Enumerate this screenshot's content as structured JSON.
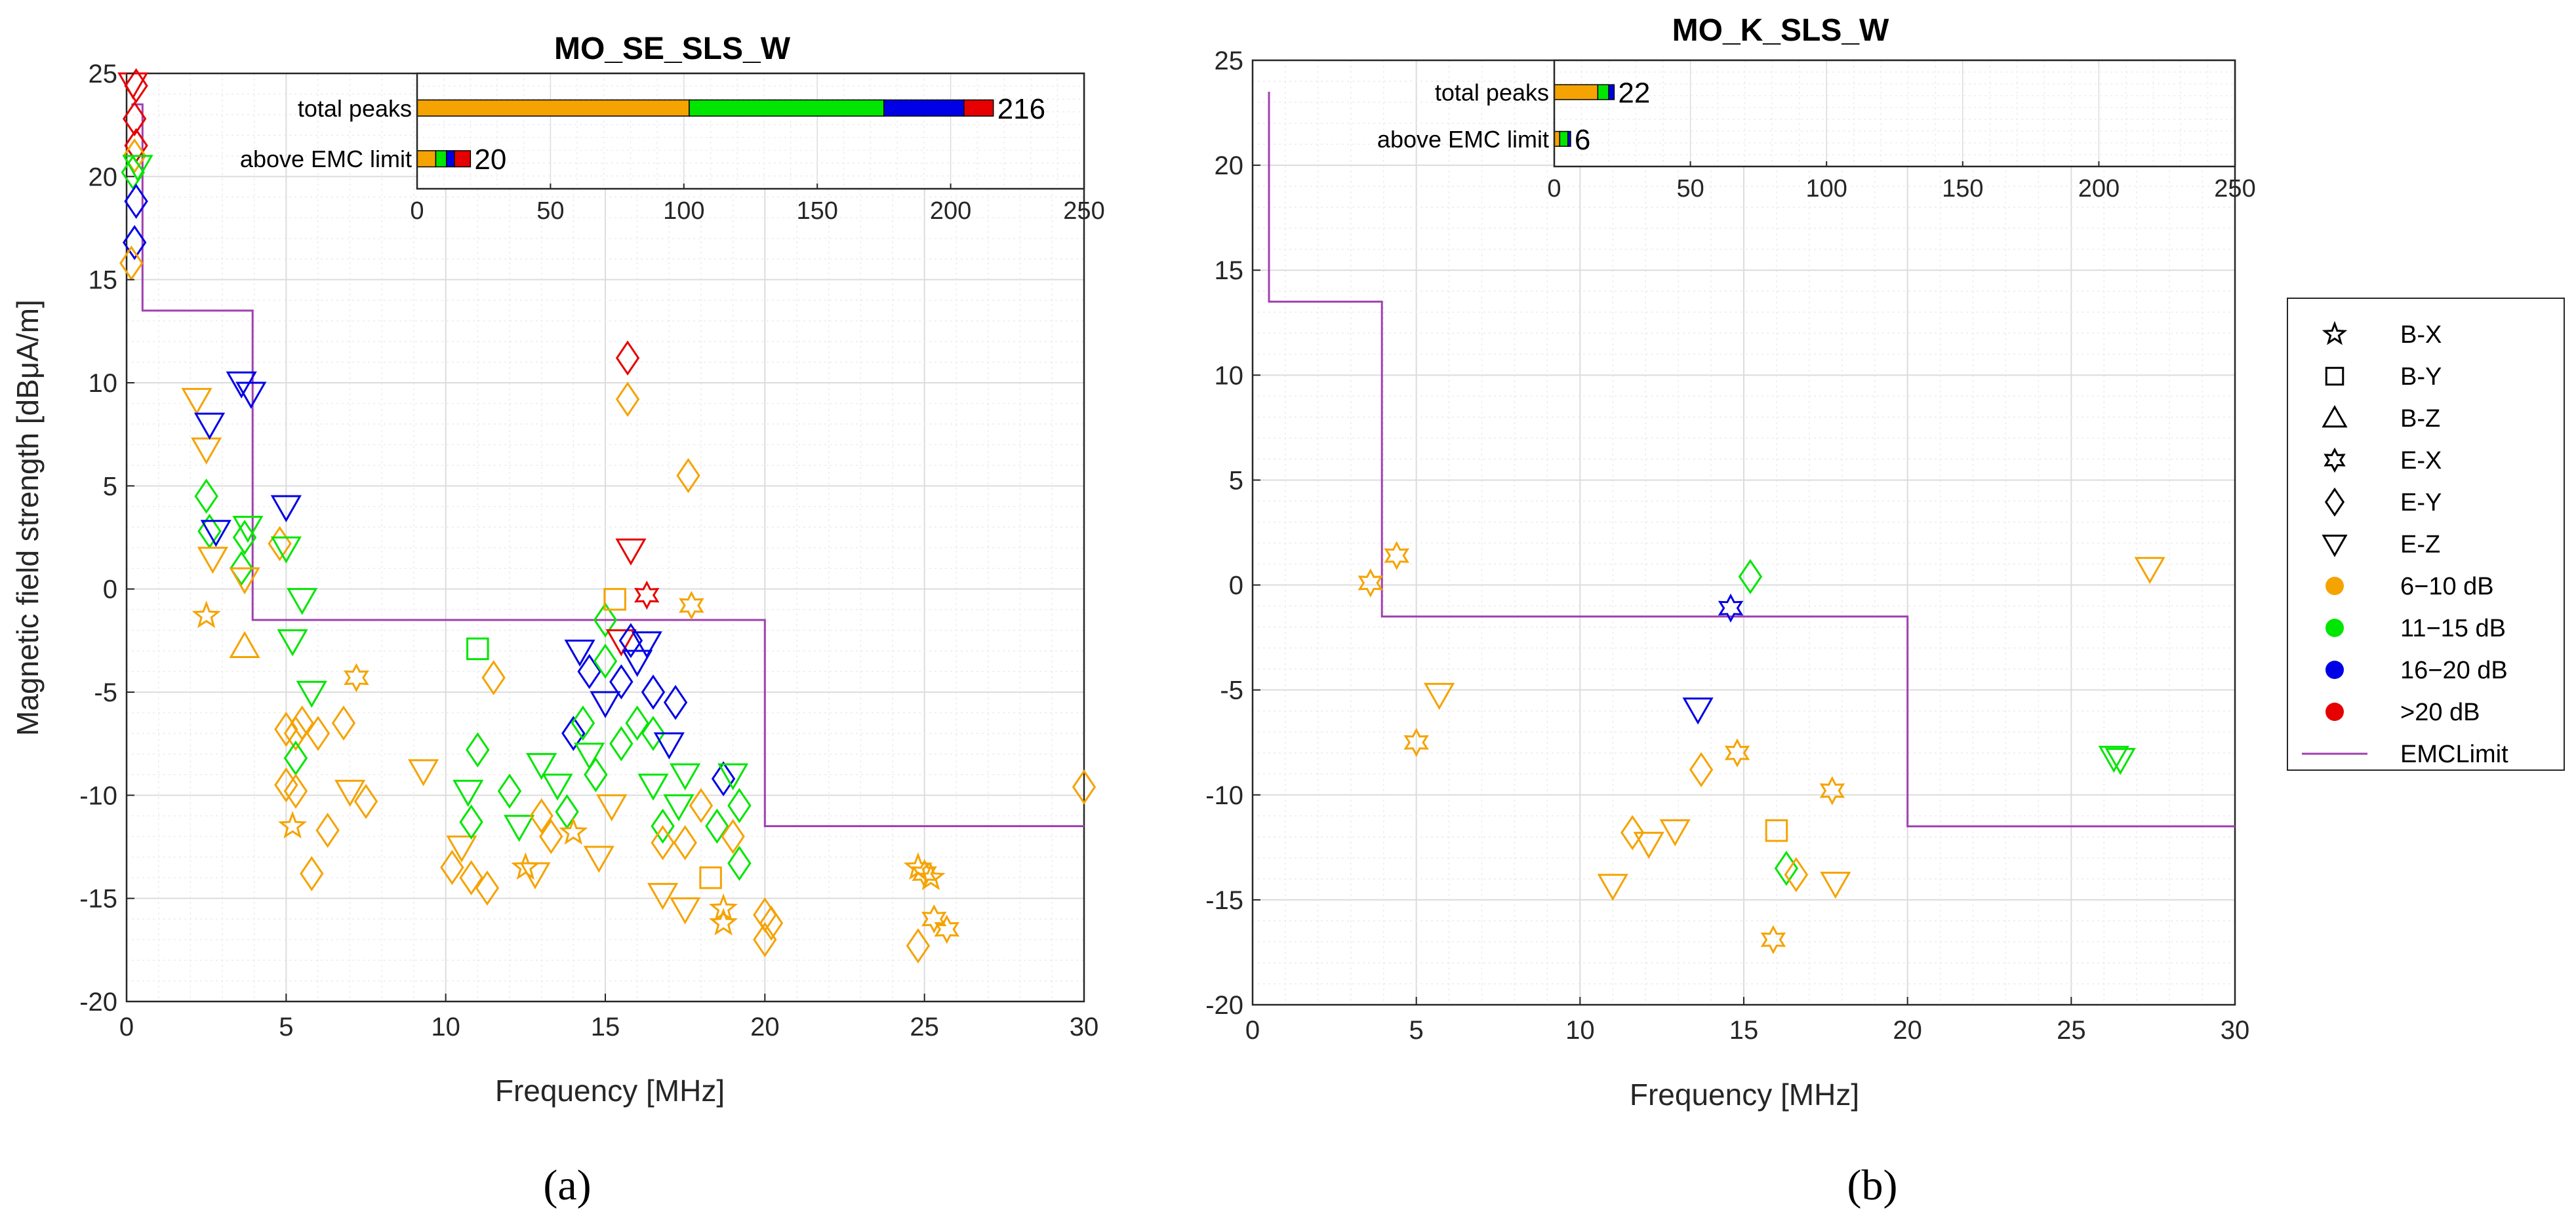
{
  "chart_data": [
    {
      "id": "a",
      "type": "scatter",
      "title": "MO_SE_SLS_W",
      "caption": "(a)",
      "xlabel": "Frequency [MHz]",
      "ylabel": "Magnetic field strength [dBμA/m]",
      "xlim": [
        0,
        30
      ],
      "ylim": [
        -20,
        25
      ],
      "xticks": [
        0,
        5,
        10,
        15,
        20,
        25,
        30
      ],
      "yticks": [
        -20,
        -15,
        -10,
        -5,
        0,
        5,
        10,
        15,
        20,
        25
      ],
      "grid": true,
      "emc_limit": [
        [
          0.15,
          23.5
        ],
        [
          0.5,
          23.5
        ],
        [
          0.5,
          13.5
        ],
        [
          3.95,
          13.5
        ],
        [
          3.95,
          -1.5
        ],
        [
          20,
          -1.5
        ],
        [
          20,
          -11.5
        ],
        [
          30,
          -11.5
        ]
      ],
      "points": [
        [
          0.2,
          24.5,
          "E-Z",
          ">20 dB"
        ],
        [
          0.3,
          24.4,
          "E-Y",
          ">20 dB"
        ],
        [
          0.25,
          22.8,
          "E-Y",
          ">20 dB"
        ],
        [
          0.3,
          21.5,
          "E-Y",
          ">20 dB"
        ],
        [
          0.25,
          21.0,
          "E-Y",
          "6-10 dB"
        ],
        [
          0.35,
          20.5,
          "E-Z",
          "11-15 dB"
        ],
        [
          0.2,
          20.2,
          "E-Y",
          "11-15 dB"
        ],
        [
          0.3,
          18.8,
          "E-Y",
          "16-20 dB"
        ],
        [
          0.25,
          16.8,
          "E-Y",
          "16-20 dB"
        ],
        [
          0.15,
          15.8,
          "E-Y",
          "6-10 dB"
        ],
        [
          2.2,
          9.2,
          "E-Z",
          "6-10 dB"
        ],
        [
          2.5,
          6.8,
          "E-Z",
          "6-10 dB"
        ],
        [
          2.6,
          8.0,
          "E-Z",
          "16-20 dB"
        ],
        [
          3.6,
          10.0,
          "E-Z",
          "16-20 dB"
        ],
        [
          3.9,
          9.5,
          "E-Z",
          "16-20 dB"
        ],
        [
          5.0,
          4.0,
          "E-Z",
          "16-20 dB"
        ],
        [
          2.5,
          4.5,
          "E-Y",
          "11-15 dB"
        ],
        [
          2.6,
          2.8,
          "E-Y",
          "11-15 dB"
        ],
        [
          2.8,
          2.8,
          "E-Z",
          "16-20 dB"
        ],
        [
          2.7,
          1.5,
          "E-Z",
          "6-10 dB"
        ],
        [
          2.5,
          -1.3,
          "B-X",
          "6-10 dB"
        ],
        [
          3.7,
          2.5,
          "E-Y",
          "11-15 dB"
        ],
        [
          3.8,
          3.0,
          "E-Z",
          "11-15 dB"
        ],
        [
          3.6,
          1.0,
          "E-Y",
          "11-15 dB"
        ],
        [
          3.7,
          0.5,
          "E-Z",
          "6-10 dB"
        ],
        [
          3.7,
          -2.8,
          "B-Z",
          "6-10 dB"
        ],
        [
          4.8,
          2.2,
          "E-Y",
          "6-10 dB"
        ],
        [
          5.0,
          2.0,
          "E-Z",
          "11-15 dB"
        ],
        [
          5.5,
          -0.5,
          "E-Z",
          "11-15 dB"
        ],
        [
          5.2,
          -2.5,
          "E-Z",
          "11-15 dB"
        ],
        [
          5.8,
          -5.0,
          "E-Z",
          "11-15 dB"
        ],
        [
          5.0,
          -6.8,
          "E-Y",
          "6-10 dB"
        ],
        [
          5.3,
          -7.0,
          "E-Y",
          "6-10 dB"
        ],
        [
          5.5,
          -6.5,
          "E-Y",
          "6-10 dB"
        ],
        [
          5.3,
          -8.2,
          "E-Y",
          "11-15 dB"
        ],
        [
          5.0,
          -9.5,
          "E-Y",
          "6-10 dB"
        ],
        [
          5.3,
          -9.8,
          "E-Y",
          "6-10 dB"
        ],
        [
          5.2,
          -11.5,
          "B-X",
          "6-10 dB"
        ],
        [
          5.8,
          -13.8,
          "E-Y",
          "6-10 dB"
        ],
        [
          6.0,
          -7.0,
          "E-Y",
          "6-10 dB"
        ],
        [
          6.3,
          -11.7,
          "E-Y",
          "6-10 dB"
        ],
        [
          6.8,
          -6.5,
          "E-Y",
          "6-10 dB"
        ],
        [
          7.0,
          -9.8,
          "E-Z",
          "6-10 dB"
        ],
        [
          7.2,
          -4.3,
          "E-X",
          "6-10 dB"
        ],
        [
          7.5,
          -10.3,
          "E-Y",
          "6-10 dB"
        ],
        [
          9.3,
          -8.8,
          "E-Z",
          "6-10 dB"
        ],
        [
          10.2,
          -13.5,
          "E-Y",
          "6-10 dB"
        ],
        [
          10.5,
          -12.5,
          "E-Z",
          "6-10 dB"
        ],
        [
          10.7,
          -9.8,
          "E-Z",
          "11-15 dB"
        ],
        [
          10.8,
          -11.3,
          "E-Y",
          "11-15 dB"
        ],
        [
          11.0,
          -7.8,
          "E-Y",
          "11-15 dB"
        ],
        [
          11.0,
          -2.9,
          "B-Y",
          "11-15 dB"
        ],
        [
          11.3,
          -14.5,
          "E-Y",
          "6-10 dB"
        ],
        [
          11.5,
          -4.3,
          "E-Y",
          "6-10 dB"
        ],
        [
          10.8,
          -14.0,
          "E-Y",
          "6-10 dB"
        ],
        [
          12.0,
          -9.8,
          "E-Y",
          "11-15 dB"
        ],
        [
          12.3,
          -11.5,
          "E-Z",
          "11-15 dB"
        ],
        [
          12.5,
          -13.5,
          "B-X",
          "6-10 dB"
        ],
        [
          12.8,
          -13.8,
          "E-Z",
          "6-10 dB"
        ],
        [
          13.0,
          -8.5,
          "E-Z",
          "11-15 dB"
        ],
        [
          13.0,
          -11.0,
          "E-Y",
          "6-10 dB"
        ],
        [
          13.3,
          -12.0,
          "E-Y",
          "6-10 dB"
        ],
        [
          13.5,
          -9.5,
          "E-Z",
          "11-15 dB"
        ],
        [
          13.8,
          -10.8,
          "E-Y",
          "11-15 dB"
        ],
        [
          14.0,
          -7.0,
          "E-Y",
          "16-20 dB"
        ],
        [
          14.0,
          -11.8,
          "B-X",
          "6-10 dB"
        ],
        [
          14.2,
          -3.0,
          "E-Z",
          "16-20 dB"
        ],
        [
          14.3,
          -6.5,
          "E-Y",
          "11-15 dB"
        ],
        [
          14.5,
          -8.0,
          "E-Z",
          "11-15 dB"
        ],
        [
          14.5,
          -4.0,
          "E-Y",
          "16-20 dB"
        ],
        [
          14.7,
          -9.0,
          "E-Y",
          "11-15 dB"
        ],
        [
          14.8,
          -13.0,
          "E-Z",
          "6-10 dB"
        ],
        [
          15.0,
          -1.5,
          "E-Y",
          "11-15 dB"
        ],
        [
          15.0,
          -3.5,
          "E-Y",
          "11-15 dB"
        ],
        [
          15.0,
          -5.5,
          "E-Z",
          "16-20 dB"
        ],
        [
          15.2,
          -10.5,
          "E-Z",
          "6-10 dB"
        ],
        [
          15.3,
          -0.5,
          "B-Y",
          "6-10 dB"
        ],
        [
          15.5,
          -2.5,
          "E-Z",
          ">20 dB"
        ],
        [
          15.5,
          -4.5,
          "E-Y",
          "16-20 dB"
        ],
        [
          15.5,
          -7.5,
          "E-Y",
          "11-15 dB"
        ],
        [
          15.7,
          11.2,
          "E-Y",
          ">20 dB"
        ],
        [
          15.7,
          9.2,
          "E-Y",
          "6-10 dB"
        ],
        [
          15.8,
          1.9,
          "E-Z",
          ">20 dB"
        ],
        [
          15.8,
          -2.5,
          "E-Y",
          "16-20 dB"
        ],
        [
          16.0,
          -3.5,
          "E-Z",
          "16-20 dB"
        ],
        [
          16.0,
          -6.5,
          "E-Y",
          "11-15 dB"
        ],
        [
          16.3,
          -0.3,
          "E-X",
          ">20 dB"
        ],
        [
          16.3,
          -2.6,
          "E-Z",
          "16-20 dB"
        ],
        [
          16.5,
          -5.0,
          "E-Y",
          "16-20 dB"
        ],
        [
          16.5,
          -7.0,
          "E-Y",
          "11-15 dB"
        ],
        [
          16.5,
          -9.5,
          "E-Z",
          "11-15 dB"
        ],
        [
          16.8,
          -11.5,
          "E-Y",
          "11-15 dB"
        ],
        [
          16.8,
          -12.3,
          "E-Y",
          "6-10 dB"
        ],
        [
          17.0,
          -7.5,
          "E-Z",
          "16-20 dB"
        ],
        [
          17.2,
          -5.5,
          "E-Y",
          "16-20 dB"
        ],
        [
          17.3,
          -10.5,
          "E-Z",
          "11-15 dB"
        ],
        [
          17.5,
          -12.3,
          "E-Y",
          "6-10 dB"
        ],
        [
          17.5,
          -15.5,
          "E-Z",
          "6-10 dB"
        ],
        [
          17.6,
          5.5,
          "E-Y",
          "6-10 dB"
        ],
        [
          17.7,
          -0.8,
          "E-X",
          "6-10 dB"
        ],
        [
          17.5,
          -9.0,
          "E-Z",
          "11-15 dB"
        ],
        [
          16.8,
          -14.8,
          "E-Z",
          "6-10 dB"
        ],
        [
          18.0,
          -10.5,
          "E-Y",
          "6-10 dB"
        ],
        [
          18.3,
          -14.0,
          "B-Y",
          "6-10 dB"
        ],
        [
          18.5,
          -11.5,
          "E-Y",
          "11-15 dB"
        ],
        [
          18.7,
          -15.5,
          "B-X",
          "6-10 dB"
        ],
        [
          18.7,
          -16.2,
          "B-X",
          "6-10 dB"
        ],
        [
          18.7,
          -9.2,
          "E-Y",
          "16-20 dB"
        ],
        [
          19.0,
          -12.0,
          "E-Y",
          "6-10 dB"
        ],
        [
          19.0,
          -9.0,
          "E-Z",
          "11-15 dB"
        ],
        [
          19.2,
          -10.5,
          "E-Y",
          "11-15 dB"
        ],
        [
          19.2,
          -13.3,
          "E-Y",
          "11-15 dB"
        ],
        [
          20.0,
          -15.8,
          "E-Y",
          "6-10 dB"
        ],
        [
          20.0,
          -17.0,
          "E-Y",
          "6-10 dB"
        ],
        [
          20.2,
          -16.2,
          "E-Y",
          "6-10 dB"
        ],
        [
          24.8,
          -13.5,
          "B-X",
          "6-10 dB"
        ],
        [
          25.0,
          -13.8,
          "E-X",
          "6-10 dB"
        ],
        [
          24.8,
          -17.3,
          "E-Y",
          "6-10 dB"
        ],
        [
          25.2,
          -14.0,
          "B-X",
          "6-10 dB"
        ],
        [
          25.3,
          -16.0,
          "E-X",
          "6-10 dB"
        ],
        [
          25.7,
          -16.5,
          "E-X",
          "6-10 dB"
        ],
        [
          30.0,
          -9.6,
          "E-Y",
          "6-10 dB"
        ]
      ],
      "inset": {
        "type": "bar",
        "xlim": [
          0,
          250
        ],
        "xticks": [
          0,
          50,
          100,
          150,
          200,
          250
        ],
        "categories": [
          "total peaks",
          "above EMC limit"
        ],
        "series": [
          {
            "name": "6-10 dB",
            "values": [
              102,
              7
            ]
          },
          {
            "name": "11-15 dB",
            "values": [
              73,
              4
            ]
          },
          {
            "name": "16-20 dB",
            "values": [
              30,
              3
            ]
          },
          {
            "name": ">20 dB",
            "values": [
              11,
              6
            ]
          }
        ],
        "totals": [
          "216",
          "20"
        ]
      }
    },
    {
      "id": "b",
      "type": "scatter",
      "title": "MO_K_SLS_W",
      "caption": "(b)",
      "xlabel": "Frequency [MHz]",
      "ylabel": "",
      "xlim": [
        0,
        30
      ],
      "ylim": [
        -20,
        25
      ],
      "xticks": [
        0,
        5,
        10,
        15,
        20,
        25,
        30
      ],
      "yticks": [
        -20,
        -15,
        -10,
        -5,
        0,
        5,
        10,
        15,
        20,
        25
      ],
      "grid": true,
      "emc_limit": [
        [
          0.5,
          23.5
        ],
        [
          0.5,
          13.5
        ],
        [
          3.95,
          13.5
        ],
        [
          3.95,
          -1.5
        ],
        [
          20,
          -1.5
        ],
        [
          20,
          -11.5
        ],
        [
          30,
          -11.5
        ]
      ],
      "points": [
        [
          3.6,
          0.1,
          "E-X",
          "6-10 dB"
        ],
        [
          4.4,
          1.4,
          "E-X",
          "6-10 dB"
        ],
        [
          5.0,
          -7.5,
          "E-X",
          "6-10 dB"
        ],
        [
          5.7,
          -5.2,
          "E-Z",
          "6-10 dB"
        ],
        [
          11.0,
          -14.3,
          "E-Z",
          "6-10 dB"
        ],
        [
          11.6,
          -11.8,
          "E-Y",
          "6-10 dB"
        ],
        [
          12.1,
          -12.3,
          "E-Z",
          "6-10 dB"
        ],
        [
          12.9,
          -11.7,
          "E-Z",
          "6-10 dB"
        ],
        [
          13.6,
          -5.9,
          "E-Z",
          "16-20 dB"
        ],
        [
          13.7,
          -8.8,
          "E-Y",
          "6-10 dB"
        ],
        [
          14.6,
          -1.1,
          "E-X",
          "16-20 dB"
        ],
        [
          14.8,
          -8.0,
          "E-X",
          "6-10 dB"
        ],
        [
          15.2,
          0.4,
          "E-Y",
          "11-15 dB"
        ],
        [
          15.9,
          -16.9,
          "E-X",
          "6-10 dB"
        ],
        [
          16.0,
          -11.7,
          "B-Y",
          "6-10 dB"
        ],
        [
          16.3,
          -13.5,
          "E-Y",
          "11-15 dB"
        ],
        [
          16.6,
          -13.8,
          "E-Y",
          "6-10 dB"
        ],
        [
          17.7,
          -9.8,
          "E-X",
          "6-10 dB"
        ],
        [
          17.8,
          -14.2,
          "E-Z",
          "6-10 dB"
        ],
        [
          26.3,
          -8.2,
          "E-Z",
          "11-15 dB"
        ],
        [
          26.5,
          -8.3,
          "E-Z",
          "11-15 dB"
        ],
        [
          27.4,
          0.8,
          "E-Z",
          "6-10 dB"
        ]
      ],
      "inset": {
        "type": "bar",
        "xlim": [
          0,
          250
        ],
        "xticks": [
          0,
          50,
          100,
          150,
          200,
          250
        ],
        "categories": [
          "total peaks",
          "above EMC limit"
        ],
        "series": [
          {
            "name": "6-10 dB",
            "values": [
              16,
              2
            ]
          },
          {
            "name": "11-15 dB",
            "values": [
              4,
              3
            ]
          },
          {
            "name": "16-20 dB",
            "values": [
              2,
              1
            ]
          },
          {
            "name": ">20 dB",
            "values": [
              0,
              0
            ]
          }
        ],
        "totals": [
          "22",
          "6"
        ]
      }
    }
  ],
  "legend": {
    "placement": "right",
    "marker_items": [
      {
        "label": "B-X",
        "marker": "B-X"
      },
      {
        "label": "B-Y",
        "marker": "B-Y"
      },
      {
        "label": "B-Z",
        "marker": "B-Z"
      },
      {
        "label": "E-X",
        "marker": "E-X"
      },
      {
        "label": "E-Y",
        "marker": "E-Y"
      },
      {
        "label": "E-Z",
        "marker": "E-Z"
      }
    ],
    "color_items": [
      {
        "label": "6−10 dB",
        "key": "6-10 dB"
      },
      {
        "label": "11−15 dB",
        "key": "11-15 dB"
      },
      {
        "label": "16−20 dB",
        "key": "16-20 dB"
      },
      {
        "label": ">20 dB",
        "key": ">20 dB"
      }
    ],
    "line_item": {
      "label": "EMCLimit"
    }
  },
  "colors": {
    "6-10 dB": "#f5a300",
    "11-15 dB": "#00e600",
    "16-20 dB": "#0000e6",
    ">20 dB": "#e60000",
    "emc_limit": "#a040b0"
  }
}
